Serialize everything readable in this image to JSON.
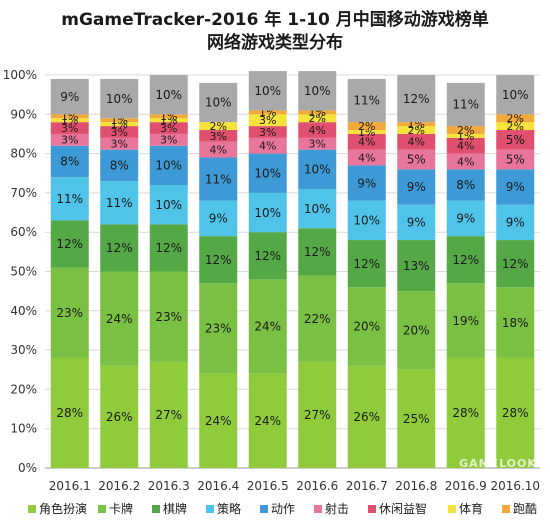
{
  "titles": {
    "line1": "mGameTracker-2016 年 1-10 月中国移动游戏榜单",
    "line2": "网络游戏类型分布"
  },
  "watermark": "GAMELOOK",
  "chart_data": {
    "type": "bar",
    "stacked": true,
    "percent": true,
    "title": "mGameTracker-2016 年 1-10 月中国移动游戏榜单 网络游戏类型分布",
    "xlabel": "",
    "ylabel": "",
    "ylim": [
      0,
      100
    ],
    "yticks": [
      "0%",
      "10%",
      "20%",
      "30%",
      "40%",
      "50%",
      "60%",
      "70%",
      "80%",
      "90%",
      "100%"
    ],
    "grid": true,
    "legend_position": "bottom",
    "categories": [
      "2016.1",
      "2016.2",
      "2016.3",
      "2016.4",
      "2016.5",
      "2016.6",
      "2016.7",
      "2016.8",
      "2016.9",
      "2016.10"
    ],
    "series": [
      {
        "name": "角色扮演",
        "color": "#8fcb3b",
        "values": [
          28,
          26,
          27,
          24,
          24,
          27,
          26,
          25,
          28,
          28
        ]
      },
      {
        "name": "卡牌",
        "color": "#7ac143",
        "values": [
          23,
          24,
          23,
          23,
          24,
          22,
          20,
          20,
          19,
          18
        ]
      },
      {
        "name": "棋牌",
        "color": "#55a846",
        "values": [
          12,
          12,
          12,
          12,
          12,
          12,
          12,
          13,
          12,
          12
        ]
      },
      {
        "name": "策略",
        "color": "#4fc3e8",
        "values": [
          11,
          11,
          10,
          9,
          10,
          10,
          10,
          9,
          9,
          9
        ]
      },
      {
        "name": "动作",
        "color": "#3d9ad6",
        "values": [
          8,
          8,
          10,
          11,
          10,
          10,
          9,
          9,
          8,
          9
        ]
      },
      {
        "name": "射击",
        "color": "#e8769a",
        "values": [
          3,
          3,
          3,
          4,
          4,
          3,
          4,
          5,
          4,
          5
        ]
      },
      {
        "name": "休闲益智",
        "color": "#e0506e",
        "values": [
          3,
          3,
          3,
          3,
          3,
          4,
          4,
          4,
          4,
          5
        ]
      },
      {
        "name": "体育",
        "color": "#f5e23a",
        "values": [
          1,
          1,
          1,
          2,
          3,
          2,
          1,
          2,
          1,
          2
        ]
      },
      {
        "name": "跑酷",
        "color": "#f2a93b",
        "values": [
          1,
          1,
          1,
          0,
          1,
          1,
          2,
          1,
          2,
          2
        ]
      },
      {
        "name": "其他",
        "color": "#a9a9a9",
        "values": [
          9,
          10,
          10,
          10,
          10,
          10,
          11,
          12,
          11,
          10
        ]
      }
    ],
    "segment_labels": [
      [
        "28%",
        "23%",
        "12%",
        "11%",
        "8%",
        "3%",
        "3%",
        "1%",
        "1%",
        "9%"
      ],
      [
        "26%",
        "24%",
        "12%",
        "11%",
        "8%",
        "3%",
        "3%",
        "1%",
        "1%",
        "10%"
      ],
      [
        "27%",
        "23%",
        "12%",
        "10%",
        "10%",
        "3%",
        "3%",
        "1%",
        "1%",
        "10%"
      ],
      [
        "24%",
        "23%",
        "12%",
        "9%",
        "11%",
        "4%",
        "3%",
        "2%",
        "",
        "10%"
      ],
      [
        "24%",
        "24%",
        "12%",
        "10%",
        "10%",
        "4%",
        "3%",
        "3%",
        "1%",
        "10%"
      ],
      [
        "27%",
        "22%",
        "12%",
        "10%",
        "10%",
        "3%",
        "4%",
        "2%",
        "1%",
        "10%"
      ],
      [
        "26%",
        "20%",
        "12%",
        "10%",
        "9%",
        "4%",
        "4%",
        "1%",
        "2%",
        "11%"
      ],
      [
        "25%",
        "20%",
        "13%",
        "9%",
        "9%",
        "5%",
        "4%",
        "2%",
        "1%",
        "12%"
      ],
      [
        "28%",
        "19%",
        "12%",
        "9%",
        "8%",
        "4%",
        "4%",
        "1%",
        "2%",
        "11%"
      ],
      [
        "28%",
        "18%",
        "12%",
        "9%",
        "9%",
        "5%",
        "5%",
        "2%",
        "2%",
        "10%"
      ]
    ]
  }
}
